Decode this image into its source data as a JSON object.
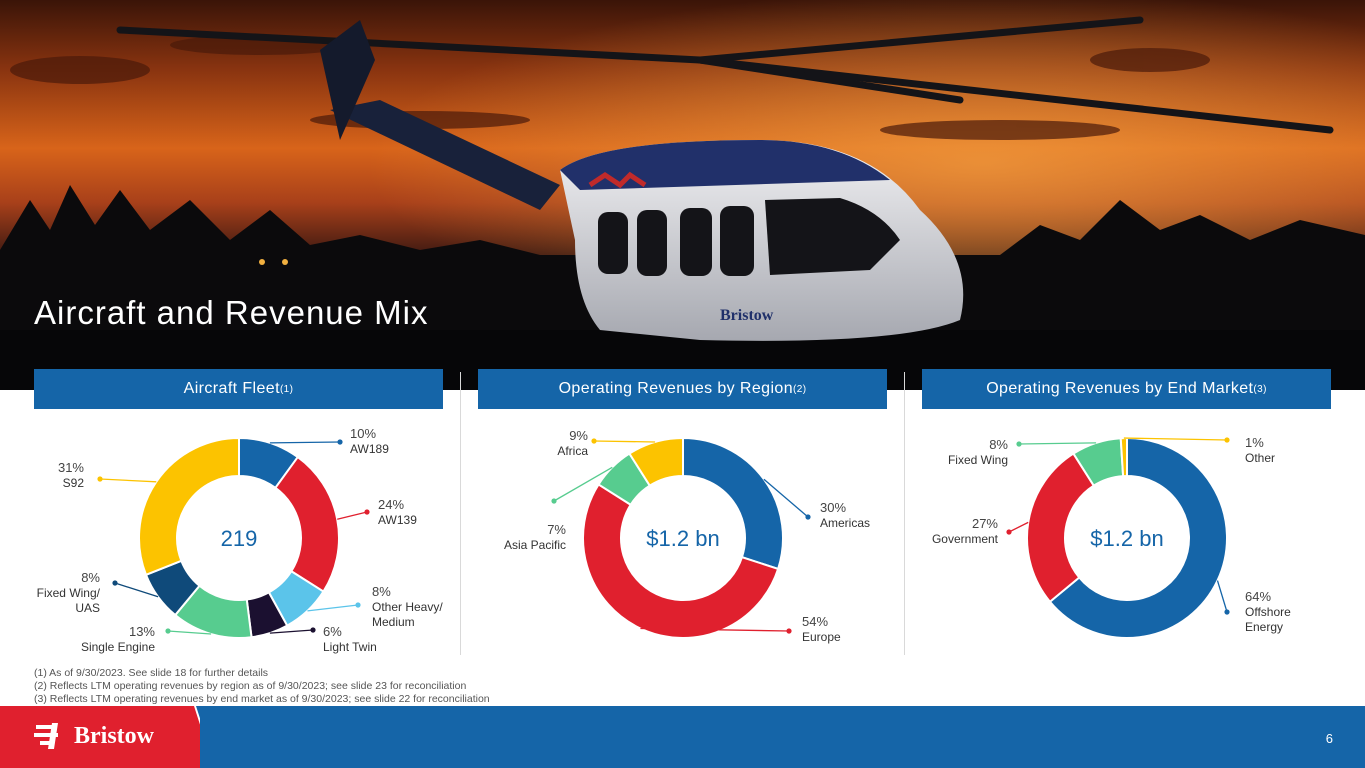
{
  "slide": {
    "title": "Aircraft and Revenue Mix",
    "page_number": "6"
  },
  "brand": {
    "name": "Bristow",
    "color_primary": "#1565a8",
    "color_red": "#e0202e"
  },
  "panels": [
    {
      "title": "Aircraft Fleet",
      "note_ref": "(1)",
      "center_value": "219"
    },
    {
      "title": "Operating Revenues by Region",
      "note_ref": "(2)",
      "center_value": "$1.2 bn"
    },
    {
      "title": "Operating Revenues by End Market",
      "note_ref": "(3)",
      "center_value": "$1.2 bn"
    }
  ],
  "chart_data": [
    {
      "type": "pie",
      "center_label": "219",
      "slices": [
        {
          "pct": "10%",
          "name": "AW189",
          "value": 10,
          "color": "#1565a8"
        },
        {
          "pct": "24%",
          "name": "AW139",
          "value": 24,
          "color": "#e0202e"
        },
        {
          "pct": "8%",
          "name": "Other Heavy/ Medium",
          "value": 8,
          "color": "#5bc4ea"
        },
        {
          "pct": "6%",
          "name": "Light Twin",
          "value": 6,
          "color": "#1b1030"
        },
        {
          "pct": "13%",
          "name": "Single Engine",
          "value": 13,
          "color": "#57cc8f"
        },
        {
          "pct": "8%",
          "name": "Fixed Wing/ UAS",
          "value": 8,
          "color": "#0f4a7a"
        },
        {
          "pct": "31%",
          "name": "S92",
          "value": 31,
          "color": "#fcc300"
        }
      ]
    },
    {
      "type": "pie",
      "center_label": "$1.2 bn",
      "slices": [
        {
          "pct": "30%",
          "name": "Americas",
          "value": 30,
          "color": "#1565a8"
        },
        {
          "pct": "54%",
          "name": "Europe",
          "value": 54,
          "color": "#e0202e"
        },
        {
          "pct": "7%",
          "name": "Asia Pacific",
          "value": 7,
          "color": "#57cc8f"
        },
        {
          "pct": "9%",
          "name": "Africa",
          "value": 9,
          "color": "#fcc300"
        }
      ]
    },
    {
      "type": "pie",
      "center_label": "$1.2 bn",
      "slices": [
        {
          "pct": "64%",
          "name": "Offshore Energy",
          "value": 64,
          "color": "#1565a8"
        },
        {
          "pct": "27%",
          "name": "Government",
          "value": 27,
          "color": "#e0202e"
        },
        {
          "pct": "8%",
          "name": "Fixed Wing",
          "value": 8,
          "color": "#57cc8f"
        },
        {
          "pct": "1%",
          "name": "Other",
          "value": 1,
          "color": "#fcc300"
        }
      ]
    }
  ],
  "footnotes": [
    "(1) As of 9/30/2023. See slide 18 for further details",
    "(2) Reflects LTM operating revenues by region as of 9/30/2023; see slide 23 for reconciliation",
    "(3) Reflects LTM operating revenues by end market as of 9/30/2023; see slide 22 for reconciliation"
  ]
}
